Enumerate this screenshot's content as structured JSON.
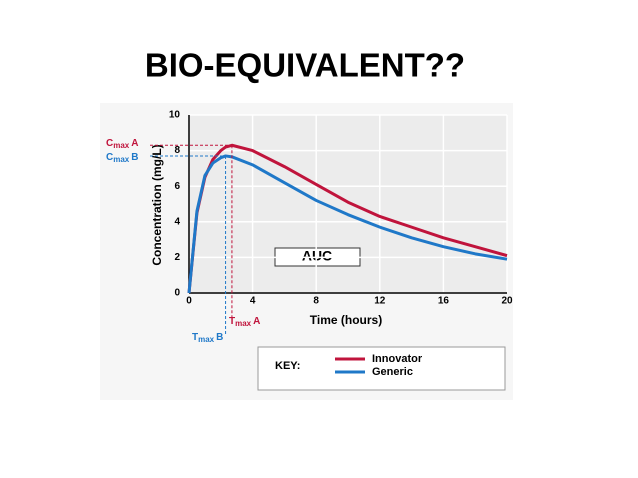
{
  "chart_data": {
    "type": "line",
    "title": "BIO-EQUIVALENT??",
    "x_label": "Time (hours)",
    "y_label": "Concentration (mg/L)",
    "x": [
      0,
      0.5,
      1,
      1.5,
      2,
      2.3,
      2.7,
      4,
      6,
      8,
      10,
      12,
      14,
      16,
      18,
      20
    ],
    "series": [
      {
        "name": "Innovator",
        "color": "#c0143c",
        "values": [
          0,
          4.5,
          6.5,
          7.5,
          8.0,
          8.2,
          8.3,
          8.0,
          7.1,
          6.1,
          5.1,
          4.3,
          3.7,
          3.1,
          2.6,
          2.1
        ]
      },
      {
        "name": "Generic",
        "color": "#1f78c8",
        "values": [
          0,
          4.6,
          6.6,
          7.3,
          7.6,
          7.7,
          7.65,
          7.2,
          6.2,
          5.2,
          4.4,
          3.7,
          3.1,
          2.6,
          2.2,
          1.9
        ]
      }
    ],
    "xlim": [
      0,
      20
    ],
    "xticks": [
      0,
      4,
      8,
      12,
      16,
      20
    ],
    "ylim": [
      0,
      10
    ],
    "yticks": [
      0,
      2,
      4,
      6,
      8,
      10
    ],
    "grid": true,
    "auc_label": "AUC",
    "legend_title": "KEY:",
    "annotations": [
      {
        "text": "C",
        "sub": "max",
        "suffix": "A"
      },
      {
        "text": "C",
        "sub": "max",
        "suffix": "B"
      },
      {
        "text": "T",
        "sub": "max",
        "suffix": "A"
      },
      {
        "text": "T",
        "sub": "max",
        "suffix": "B"
      }
    ]
  }
}
